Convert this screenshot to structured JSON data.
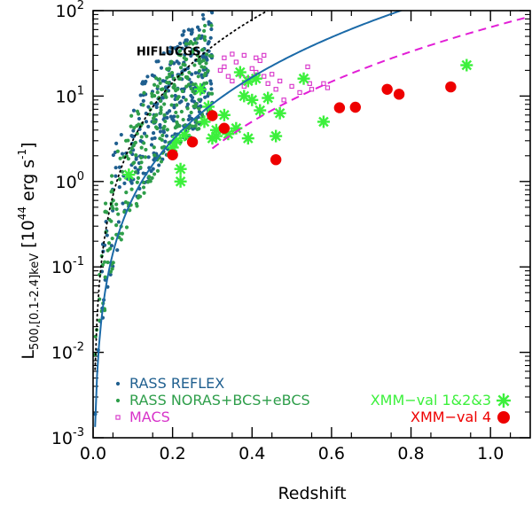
{
  "chart_data": {
    "type": "scatter",
    "title": "",
    "xlabel": "Redshift",
    "ylabel": {
      "base": "L",
      "sub": "500,[0.1-2.4]keV",
      "units_prefix": "[10",
      "units_exp": "44",
      "units_suffix": " erg s",
      "units_exp2": "-1",
      "units_close": "]"
    },
    "xlim": [
      0.0,
      1.1
    ],
    "ylim": [
      0.001,
      100
    ],
    "yscale": "log",
    "x_ticks": [
      0.0,
      0.2,
      0.4,
      0.6,
      0.8,
      1.0
    ],
    "x_tick_labels": [
      "0.0",
      "0.2",
      "0.4",
      "0.6",
      "0.8",
      "1.0"
    ],
    "y_ticks": [
      {
        "value": 0.001,
        "base": "10",
        "exp": "-3"
      },
      {
        "value": 0.01,
        "base": "10",
        "exp": "-2"
      },
      {
        "value": 0.1,
        "base": "10",
        "exp": "-1"
      },
      {
        "value": 1,
        "base": "10",
        "exp": "0"
      },
      {
        "value": 10,
        "base": "10",
        "exp": "1"
      },
      {
        "value": 100,
        "base": "10",
        "exp": "2"
      }
    ],
    "annotations": [
      {
        "text": "HIFLUCGS",
        "x": 0.19,
        "y": 30
      }
    ],
    "colors": {
      "reflex": "#1f5f8f",
      "noras": "#2e9e4a",
      "macs": "#d732c9",
      "xmm123": "#3cf03c",
      "xmm4": "#ee0000",
      "curve_solid": "#1b6aa8",
      "curve_dashed": "#e21fd6",
      "curve_dotted": "#000000"
    },
    "series": [
      {
        "name": "RASS REFLEX",
        "marker": "small-dot",
        "color_key": "reflex",
        "generated": {
          "seed": 11,
          "count": 320,
          "zmax": 0.3,
          "zpow": 0.7,
          "curve": "flux",
          "factor_log_min": -0.15,
          "factor_log_max": 1.15
        }
      },
      {
        "name": "RASS NORAS+BCS+eBCS",
        "marker": "small-dot",
        "color_key": "noras",
        "generated": {
          "seed": 23,
          "count": 300,
          "zmax": 0.3,
          "zpow": 0.75,
          "curve": "flux",
          "factor_log_min": -0.2,
          "factor_log_max": 1.0
        }
      },
      {
        "name": "MACS",
        "marker": "open-square",
        "color_key": "macs",
        "points": [
          [
            0.32,
            20
          ],
          [
            0.33,
            22
          ],
          [
            0.34,
            17
          ],
          [
            0.35,
            15
          ],
          [
            0.36,
            25
          ],
          [
            0.37,
            18
          ],
          [
            0.38,
            13
          ],
          [
            0.39,
            16
          ],
          [
            0.4,
            21
          ],
          [
            0.41,
            19
          ],
          [
            0.42,
            26
          ],
          [
            0.43,
            17
          ],
          [
            0.44,
            14
          ],
          [
            0.45,
            18
          ],
          [
            0.46,
            12
          ],
          [
            0.47,
            15
          ],
          [
            0.48,
            9
          ],
          [
            0.5,
            13
          ],
          [
            0.52,
            11
          ],
          [
            0.54,
            22
          ],
          [
            0.545,
            14
          ],
          [
            0.55,
            12
          ],
          [
            0.58,
            14
          ],
          [
            0.59,
            12.5
          ],
          [
            0.33,
            28
          ],
          [
            0.35,
            31
          ],
          [
            0.38,
            30
          ],
          [
            0.41,
            28
          ],
          [
            0.43,
            30
          ]
        ]
      },
      {
        "name": "XMM-val 1&2&3",
        "marker": "asterisk",
        "color_key": "xmm123",
        "points": [
          [
            0.09,
            1.2
          ],
          [
            0.2,
            2.5
          ],
          [
            0.21,
            3.0
          ],
          [
            0.22,
            1.4
          ],
          [
            0.22,
            1.0
          ],
          [
            0.23,
            3.5
          ],
          [
            0.27,
            12
          ],
          [
            0.28,
            5.0
          ],
          [
            0.29,
            7.5
          ],
          [
            0.3,
            3.2
          ],
          [
            0.31,
            4.0
          ],
          [
            0.31,
            3.4
          ],
          [
            0.33,
            6.0
          ],
          [
            0.34,
            3.6
          ],
          [
            0.36,
            4.2
          ],
          [
            0.37,
            19
          ],
          [
            0.38,
            10
          ],
          [
            0.39,
            15
          ],
          [
            0.39,
            3.2
          ],
          [
            0.4,
            9.0
          ],
          [
            0.41,
            16
          ],
          [
            0.42,
            6.8
          ],
          [
            0.44,
            9.5
          ],
          [
            0.46,
            3.4
          ],
          [
            0.47,
            6.3
          ],
          [
            0.53,
            16
          ],
          [
            0.58,
            5.0
          ],
          [
            0.94,
            23
          ]
        ]
      },
      {
        "name": "XMM-val 4",
        "marker": "filled-circle",
        "color_key": "xmm4",
        "points": [
          [
            0.2,
            2.05
          ],
          [
            0.25,
            2.9
          ],
          [
            0.3,
            5.9
          ],
          [
            0.33,
            4.2
          ],
          [
            0.46,
            1.8
          ],
          [
            0.62,
            7.3
          ],
          [
            0.66,
            7.4
          ],
          [
            0.74,
            12
          ],
          [
            0.77,
            10.5
          ],
          [
            0.9,
            12.8
          ]
        ]
      }
    ],
    "curves": [
      {
        "name": "solid flux limit",
        "style": "solid",
        "color_key": "curve_solid",
        "coef": 53,
        "zmin": 0.005,
        "zmax": 1.1
      },
      {
        "name": "dashed flux limit",
        "style": "dashed",
        "color_key": "curve_dashed",
        "coef": 16,
        "zmin": 0.3,
        "zmax": 1.1
      },
      {
        "name": "HIFLUCGS flux limit",
        "style": "dotted",
        "color_key": "curve_dotted",
        "coef": 250,
        "zmin": 0.005,
        "zmax": 1.1
      }
    ],
    "legend": {
      "placement": "bottom-left",
      "left": [
        {
          "label": "RASS  REFLEX",
          "color_key": "reflex",
          "marker": "small-dot"
        },
        {
          "label": "RASS  NORAS+BCS+eBCS",
          "color_key": "noras",
          "marker": "small-dot"
        },
        {
          "label": "MACS",
          "color_key": "macs",
          "marker": "open-square"
        }
      ],
      "right": [
        {
          "label": "XMM−val  1&2&3",
          "color_key": "xmm123",
          "marker": "asterisk"
        },
        {
          "label": "XMM−val  4",
          "color_key": "xmm4",
          "marker": "filled-circle"
        }
      ]
    }
  }
}
